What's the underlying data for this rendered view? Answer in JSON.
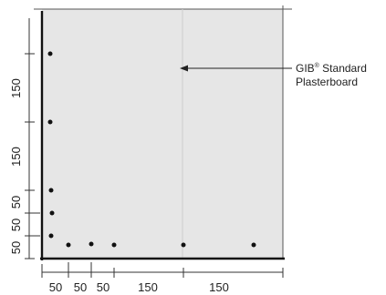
{
  "diagram": {
    "callout": {
      "brand": "GIB",
      "registered_mark": "®",
      "line1_rest": " Standard",
      "line2": "Plasterboard"
    },
    "bottom_dimensions": [
      "50",
      "50",
      "50",
      "150",
      "150"
    ],
    "left_dimensions": [
      "150",
      "150",
      "50",
      "50",
      "50"
    ],
    "colors": {
      "board": "#e6e6e6",
      "ink": "#222222",
      "fastener": "#111111"
    }
  }
}
